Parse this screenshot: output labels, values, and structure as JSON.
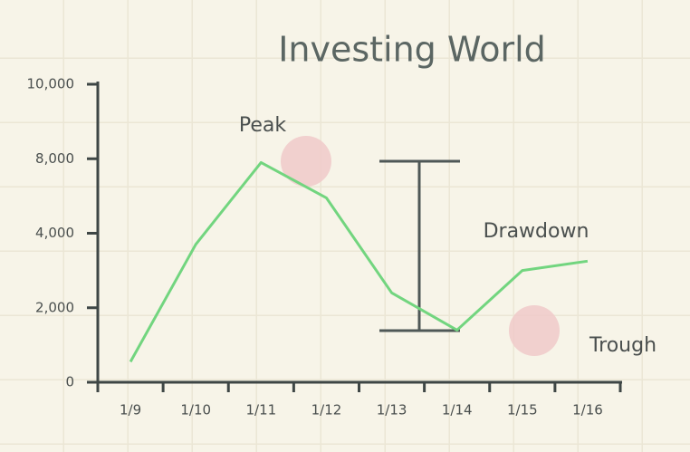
{
  "chart_data": {
    "type": "line",
    "title": "Investing World",
    "categories": [
      "1/9",
      "1/10",
      "1/11",
      "1/12",
      "1/13",
      "1/14",
      "1/15",
      "1/16"
    ],
    "series": [
      {
        "color": "#72d57f",
        "values": [
          550,
          3700,
          7800,
          5900,
          2400,
          1400,
          3000,
          3250
        ]
      }
    ],
    "ylim": [
      0,
      10000
    ],
    "yticks": [
      0,
      {
        "value": 2000,
        "label": "2,000"
      },
      {
        "value": 4000,
        "label": "4,000"
      },
      {
        "value": 8000,
        "label": "8,000"
      },
      {
        "value": 10000,
        "label": "10,000"
      }
    ],
    "annotations": [
      "Peak",
      "Drawdown",
      "Trough"
    ]
  }
}
